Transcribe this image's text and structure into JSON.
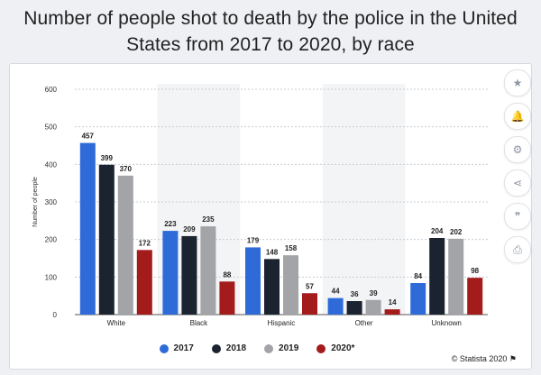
{
  "title": "Number of people shot to death by the police in the United\nStates from 2017 to 2020, by race",
  "sidebar": {
    "buttons": [
      "star-icon",
      "bell-icon",
      "gear-icon",
      "share-icon",
      "quote-icon",
      "print-icon"
    ],
    "glyphs": [
      "★",
      "🔔",
      "⚙",
      "⋖",
      "❞",
      "⎙"
    ]
  },
  "source": "© Statista 2020",
  "colors": {
    "2017": "#2f6bd8",
    "2018": "#1c2330",
    "2019": "#a3a4a8",
    "2020*": "#a31b1b",
    "band": "#f3f4f6",
    "grid": "#c9ccd2"
  },
  "chart_data": {
    "type": "bar",
    "ylabel": "Number of people",
    "ylim": [
      0,
      600
    ],
    "yticks": [
      0,
      100,
      200,
      300,
      400,
      500,
      600
    ],
    "grid": true,
    "legend_position": "bottom",
    "categories": [
      "White",
      "Black",
      "Hispanic",
      "Other",
      "Unknown"
    ],
    "series": [
      {
        "name": "2017",
        "values": [
          457,
          223,
          179,
          44,
          84
        ]
      },
      {
        "name": "2018",
        "values": [
          399,
          209,
          148,
          36,
          204
        ]
      },
      {
        "name": "2019",
        "values": [
          370,
          235,
          158,
          39,
          202
        ]
      },
      {
        "name": "2020*",
        "values": [
          172,
          88,
          57,
          14,
          98
        ]
      }
    ]
  }
}
